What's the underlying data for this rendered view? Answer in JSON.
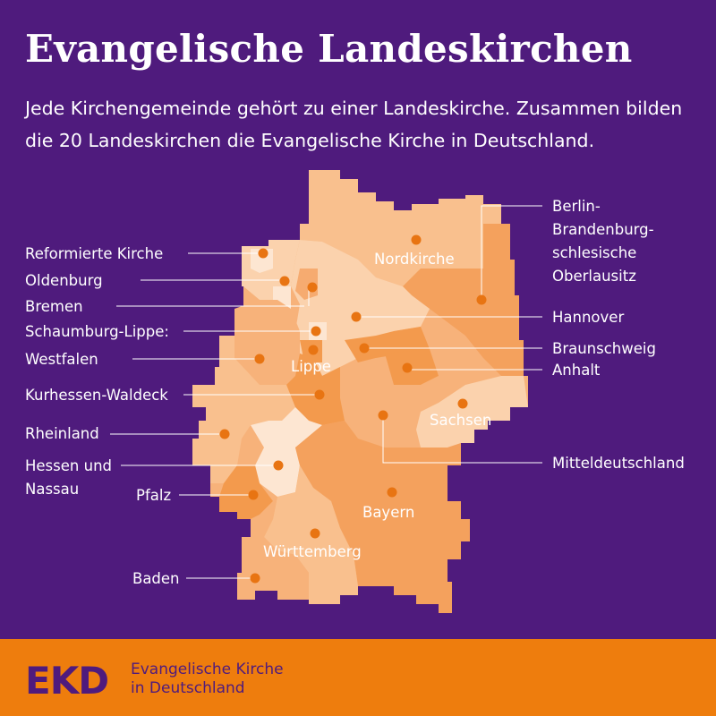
{
  "header": {
    "title": "Evangelische Landeskirchen",
    "subtitle": "Jede Kirchengemeinde gehört zu einer Landeskirche. Zusammen bilden die 20 Landeskirchen die Evangelische Kirche in Deutschland."
  },
  "map": {
    "inner_labels": {
      "nordkirche": "Nordkirche",
      "lippe": "Lippe",
      "sachsen": "Sachsen",
      "bayern": "Bayern",
      "wuerttemberg": "Württemberg"
    },
    "left_labels": {
      "reformierte": "Reformierte Kirche",
      "oldenburg": "Oldenburg",
      "bremen": "Bremen",
      "schaumburg": "Schaumburg-Lippe:",
      "westfalen": "Westfalen",
      "kurhessen": "Kurhessen-Waldeck",
      "rheinland": "Rheinland",
      "hessen_1": "Hessen und",
      "hessen_2": "Nassau",
      "pfalz": "Pfalz",
      "baden": "Baden"
    },
    "right_labels": {
      "berlin_1": "Berlin-",
      "berlin_2": "Brandenburg-",
      "berlin_3": "schlesische",
      "berlin_4": "Oberlausitz",
      "hannover": "Hannover",
      "braunschweig": "Braunschweig",
      "anhalt": "Anhalt",
      "mitteldeutschland": "Mitteldeutschland"
    }
  },
  "footer": {
    "logo": "EKD",
    "org_line1": "Evangelische Kirche",
    "org_line2": "in Deutschland"
  },
  "colors": {
    "background": "#4f1b7d",
    "footer": "#ee7d0d",
    "dot": "#e87412"
  }
}
